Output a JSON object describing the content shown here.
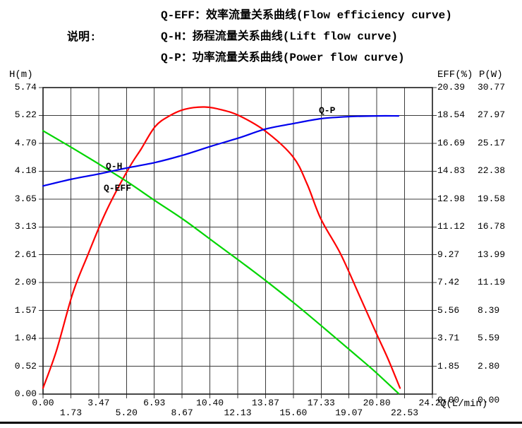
{
  "legend": {
    "label": "说明:",
    "lines": [
      "Q-EFF：效率流量关系曲线(Flow efficiency curve)",
      "Q-H：扬程流量关系曲线(Lift flow curve)",
      "Q-P：功率流量关系曲线(Power flow curve)"
    ]
  },
  "colors": {
    "grid": "#3c3c3c",
    "border": "#1a1a1a",
    "q_eff_curve": "#ff0000",
    "q_h_curve": "#00d500",
    "q_p_curve": "#0000ee"
  },
  "chart_data": {
    "type": "line",
    "grid": true,
    "axes": {
      "x": {
        "label": "Q(L/min)",
        "min": 0,
        "max": 24.27,
        "tick_labels": [
          "0.00",
          "1.73",
          "3.47",
          "5.20",
          "6.93",
          "8.67",
          "10.40",
          "12.13",
          "13.87",
          "15.60",
          "17.33",
          "19.07",
          "20.80",
          "22.53",
          "24.27"
        ]
      },
      "y_left": {
        "label": "H(m)",
        "min": 0,
        "max": 5.74,
        "tick_labels": [
          "5.74",
          "5.22",
          "4.70",
          "4.18",
          "3.65",
          "3.13",
          "2.61",
          "2.09",
          "1.57",
          "1.04",
          "0.52",
          "0.00"
        ]
      },
      "y_right_eff": {
        "label": "EFF(%)",
        "min": 0,
        "max": 20.39,
        "tick_labels": [
          "20.39",
          "18.54",
          "16.69",
          "14.83",
          "12.98",
          "11.12",
          "9.27",
          "7.42",
          "5.56",
          "3.71",
          "1.85",
          "0.00"
        ]
      },
      "y_right_p": {
        "label": "P(W)",
        "min": 0,
        "max": 30.77,
        "tick_labels": [
          "30.77",
          "27.97",
          "25.17",
          "22.38",
          "19.58",
          "16.78",
          "13.99",
          "11.19",
          "8.39",
          "5.59",
          "2.80",
          "0.00"
        ]
      }
    },
    "series": [
      {
        "name": "Q-EFF",
        "axis": "eff",
        "color": "#ff0000",
        "points": [
          [
            0,
            0.4
          ],
          [
            0.84,
            2.9
          ],
          [
            1.85,
            6.7
          ],
          [
            2.77,
            9.2
          ],
          [
            3.91,
            12.1
          ],
          [
            5.28,
            14.9
          ],
          [
            6.11,
            16.3
          ],
          [
            6.99,
            17.8
          ],
          [
            7.87,
            18.5
          ],
          [
            8.84,
            18.95
          ],
          [
            10.07,
            19.1
          ],
          [
            11.17,
            18.9
          ],
          [
            12.27,
            18.5
          ],
          [
            13.85,
            17.5
          ],
          [
            15.57,
            15.8
          ],
          [
            16.45,
            14.0
          ],
          [
            17.32,
            11.65
          ],
          [
            18.56,
            9.3
          ],
          [
            19.74,
            6.5
          ],
          [
            20.75,
            4.1
          ],
          [
            21.5,
            2.35
          ],
          [
            22.25,
            0.4
          ]
        ]
      },
      {
        "name": "Q-H",
        "axis": "h",
        "color": "#00d500",
        "points": [
          [
            0,
            4.93
          ],
          [
            1.71,
            4.63
          ],
          [
            3.47,
            4.31
          ],
          [
            5.23,
            3.98
          ],
          [
            6.99,
            3.62
          ],
          [
            8.75,
            3.27
          ],
          [
            10.51,
            2.88
          ],
          [
            12.27,
            2.49
          ],
          [
            14.03,
            2.09
          ],
          [
            15.79,
            1.67
          ],
          [
            17.54,
            1.23
          ],
          [
            19.3,
            0.78
          ],
          [
            20.62,
            0.44
          ],
          [
            22.16,
            0.01
          ]
        ]
      },
      {
        "name": "Q-P",
        "axis": "p",
        "color": "#0000ee",
        "points": [
          [
            0,
            20.9
          ],
          [
            1.71,
            21.55
          ],
          [
            3.47,
            22.1
          ],
          [
            5.23,
            22.7
          ],
          [
            6.99,
            23.25
          ],
          [
            8.75,
            24.0
          ],
          [
            10.51,
            24.9
          ],
          [
            12.27,
            25.75
          ],
          [
            13.85,
            26.6
          ],
          [
            15.57,
            27.15
          ],
          [
            17.32,
            27.65
          ],
          [
            19.04,
            27.85
          ],
          [
            20.8,
            27.93
          ],
          [
            22.16,
            27.93
          ]
        ]
      }
    ],
    "curve_labels": [
      "Q-H",
      "Q-EFF",
      "Q-P"
    ]
  }
}
